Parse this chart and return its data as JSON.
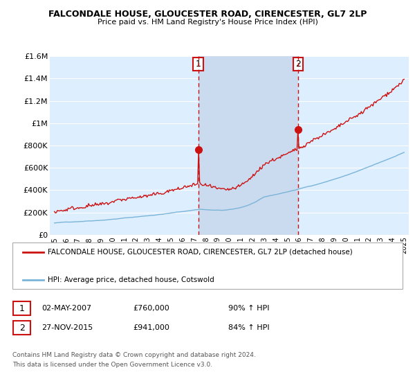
{
  "title": "FALCONDALE HOUSE, GLOUCESTER ROAD, CIRENCESTER, GL7 2LP",
  "subtitle": "Price paid vs. HM Land Registry's House Price Index (HPI)",
  "legend_line1": "FALCONDALE HOUSE, GLOUCESTER ROAD, CIRENCESTER, GL7 2LP (detached house)",
  "legend_line2": "HPI: Average price, detached house, Cotswold",
  "annotation1": {
    "num": "1",
    "date": "02-MAY-2007",
    "price": "£760,000",
    "hpi": "90% ↑ HPI"
  },
  "annotation2": {
    "num": "2",
    "date": "27-NOV-2015",
    "price": "£941,000",
    "hpi": "84% ↑ HPI"
  },
  "footer1": "Contains HM Land Registry data © Crown copyright and database right 2024.",
  "footer2": "This data is licensed under the Open Government Licence v3.0.",
  "ylim": [
    0,
    1600000
  ],
  "yticks": [
    0,
    200000,
    400000,
    600000,
    800000,
    1000000,
    1200000,
    1400000,
    1600000
  ],
  "ylabels": [
    "£0",
    "£200K",
    "£400K",
    "£600K",
    "£800K",
    "£1M",
    "£1.2M",
    "£1.4M",
    "£1.6M"
  ],
  "hpi_color": "#7ab4d8",
  "price_color": "#cc1111",
  "vline_color": "#cc1111",
  "bg_color": "#ddeeff",
  "shade_color": "#c8d8ee",
  "vline1_x": 2007.33,
  "vline2_x": 2015.92,
  "marker1_y": 760000,
  "marker2_y": 941000,
  "xmin": 1994.6,
  "xmax": 2025.4
}
